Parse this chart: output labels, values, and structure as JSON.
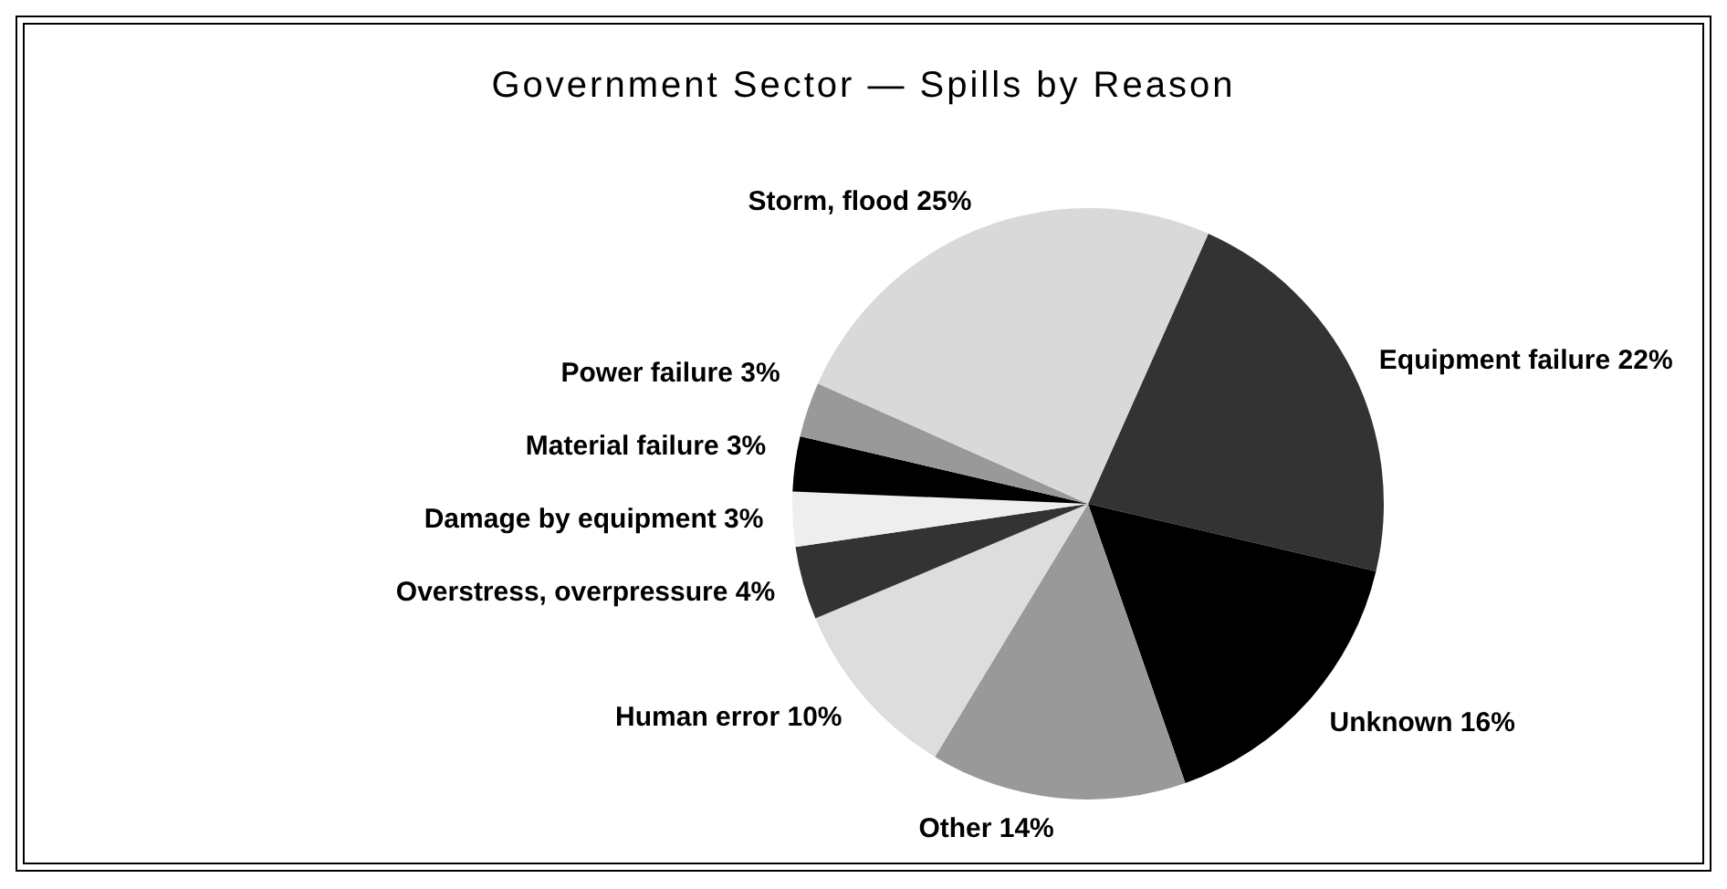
{
  "chart_data": {
    "type": "pie",
    "title": "Government Sector — Spills by Reason",
    "categories": [
      "Equipment failure",
      "Unknown",
      "Other",
      "Human error",
      "Overstress, overpressure",
      "Damage by equipment",
      "Material failure",
      "Power failure",
      "Storm, flood"
    ],
    "values": [
      22,
      16,
      14,
      10,
      4,
      3,
      3,
      3,
      25
    ],
    "value_labels": [
      "22%",
      "16%",
      "14%",
      "10%",
      "4%",
      "3%",
      "3%",
      "3%",
      "25%"
    ],
    "colors": [
      "#333333",
      "#000000",
      "#999999",
      "#dddddd",
      "#333333",
      "#eeeeee",
      "#000000",
      "#999999",
      "#d9d9d9"
    ]
  }
}
